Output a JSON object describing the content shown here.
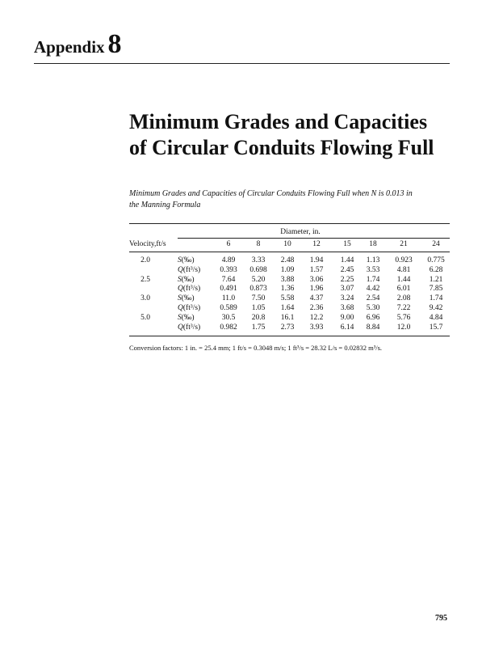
{
  "header": {
    "word": "Appendix",
    "number": "8"
  },
  "title": {
    "line1": "Minimum Grades and Capacities",
    "line2": "of Circular Conduits Flowing Full"
  },
  "caption": {
    "line1": "Minimum Grades and Capacities of Circular Conduits Flowing Full when N is 0.013 in",
    "line2": "the Manning Formula"
  },
  "table": {
    "spanner": "Diameter, in.",
    "stub_header": "Velocity,ft/s",
    "diameters": [
      "6",
      "8",
      "10",
      "12",
      "15",
      "18",
      "21",
      "24"
    ],
    "groups": [
      {
        "velocity": "2.0",
        "rows": [
          {
            "symbol": "S",
            "unit": "(‰)",
            "values": [
              "4.89",
              "3.33",
              "2.48",
              "1.94",
              "1.44",
              "1.13",
              "0.923",
              "0.775"
            ]
          },
          {
            "symbol": "Q",
            "unit": "(ft³/s)",
            "values": [
              "0.393",
              "0.698",
              "1.09",
              "1.57",
              "2.45",
              "3.53",
              "4.81",
              "6.28"
            ]
          }
        ]
      },
      {
        "velocity": "2.5",
        "rows": [
          {
            "symbol": "S",
            "unit": "(‰)",
            "values": [
              "7.64",
              "5.20",
              "3.88",
              "3.06",
              "2.25",
              "1.74",
              "1.44",
              "1.21"
            ]
          },
          {
            "symbol": "Q",
            "unit": "(ft³/s)",
            "values": [
              "0.491",
              "0.873",
              "1.36",
              "1.96",
              "3.07",
              "4.42",
              "6.01",
              "7.85"
            ]
          }
        ]
      },
      {
        "velocity": "3.0",
        "rows": [
          {
            "symbol": "S",
            "unit": "(‰)",
            "values": [
              "11.0",
              "7.50",
              "5.58",
              "4.37",
              "3.24",
              "2.54",
              "2.08",
              "1.74"
            ]
          },
          {
            "symbol": "Q",
            "unit": "(ft³/s)",
            "values": [
              "0.589",
              "1.05",
              "1.64",
              "2.36",
              "3.68",
              "5.30",
              "7.22",
              "9.42"
            ]
          }
        ]
      },
      {
        "velocity": "5.0",
        "rows": [
          {
            "symbol": "S",
            "unit": "(‰)",
            "values": [
              "30.5",
              "20.8",
              "16.1",
              "12.2",
              "9.00",
              "6.96",
              "5.76",
              "4.84"
            ]
          },
          {
            "symbol": "Q",
            "unit": "(ft³/s)",
            "values": [
              "0.982",
              "1.75",
              "2.73",
              "3.93",
              "6.14",
              "8.84",
              "12.0",
              "15.7"
            ]
          }
        ]
      }
    ]
  },
  "footnote": "Conversion factors: 1 in. = 25.4 mm; 1 ft/s = 0.3048 m/s; 1 ft³/s = 28.32 L/s = 0.02832 m³/s.",
  "page_number": "795"
}
